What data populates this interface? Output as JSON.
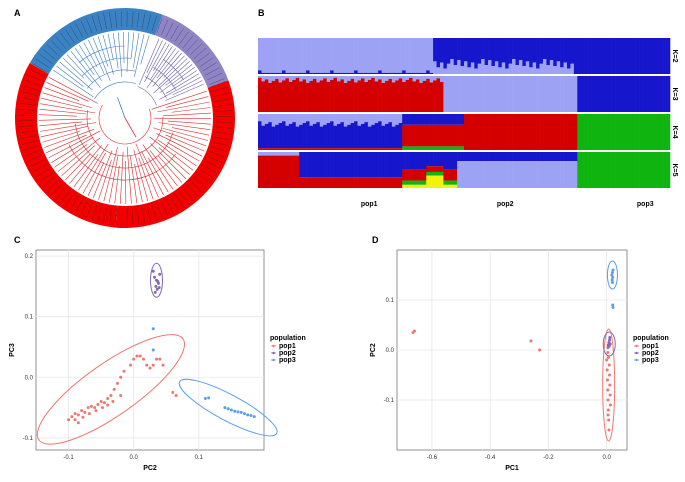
{
  "panels": {
    "a": "A",
    "b": "B",
    "c": "C",
    "d": "D"
  },
  "colors": {
    "red": "#f20000",
    "steelblue": "#3b82c4",
    "purple": "#8f84c5",
    "navy": "#1616cc",
    "lavender": "#9ea2f5",
    "crimson": "#d40000",
    "green": "#0fb40f",
    "yellow": "#f2f20a",
    "pca_pop1": "#f2766d",
    "pca_pop2": "#8468b3",
    "pca_pop3": "#5b9ee8"
  },
  "chart_data": [
    {
      "type": "dendrogram",
      "panel": "A",
      "clades": [
        {
          "name": "red",
          "fraction": 0.56
        },
        {
          "name": "blue",
          "fraction": 0.22
        },
        {
          "name": "purple",
          "fraction": 0.22
        }
      ]
    },
    {
      "type": "stacked_bar",
      "panel": "B",
      "rows": [
        {
          "label": "K=2",
          "components": [
            "lavender",
            "navy"
          ]
        },
        {
          "label": "K=3",
          "components": [
            "crimson",
            "lavender",
            "navy"
          ]
        },
        {
          "label": "K=4",
          "components": [
            "navy",
            "crimson",
            "lavender",
            "green"
          ]
        },
        {
          "label": "K=5",
          "components": [
            "crimson",
            "navy",
            "yellow",
            "lavender",
            "green"
          ]
        }
      ],
      "groups": [
        {
          "label": "pop1",
          "start": 0.0,
          "end": 0.5
        },
        {
          "label": "pop2",
          "start": 0.5,
          "end": 0.78
        },
        {
          "label": "pop3",
          "start": 0.78,
          "end": 1.0
        }
      ]
    },
    {
      "type": "scatter",
      "panel": "C",
      "xlabel": "PC2",
      "ylabel": "PC3",
      "xlim": [
        -0.15,
        0.2
      ],
      "ylim": [
        -0.12,
        0.21
      ],
      "xticks": [
        "-0.1",
        "0.0",
        "0.1"
      ],
      "yticks": [
        "0.2",
        "0.1",
        "0.0",
        "-0.1"
      ],
      "legend_title": "population",
      "legend": [
        "pop1",
        "pop2",
        "pop3"
      ],
      "series": [
        {
          "name": "pop1",
          "points": [
            [
              -0.1,
              -0.07
            ],
            [
              -0.095,
              -0.065
            ],
            [
              -0.09,
              -0.06
            ],
            [
              -0.085,
              -0.062
            ],
            [
              -0.08,
              -0.055
            ],
            [
              -0.075,
              -0.058
            ],
            [
              -0.07,
              -0.05
            ],
            [
              -0.065,
              -0.048
            ],
            [
              -0.06,
              -0.05
            ],
            [
              -0.055,
              -0.045
            ],
            [
              -0.05,
              -0.04
            ],
            [
              -0.045,
              -0.042
            ],
            [
              -0.04,
              -0.035
            ],
            [
              -0.035,
              -0.03
            ],
            [
              -0.03,
              -0.02
            ],
            [
              -0.025,
              -0.01
            ],
            [
              -0.02,
              0.0
            ],
            [
              -0.015,
              0.01
            ],
            [
              -0.005,
              0.02
            ],
            [
              0.0,
              0.03
            ],
            [
              0.005,
              0.035
            ],
            [
              0.01,
              0.035
            ],
            [
              0.015,
              0.03
            ],
            [
              0.02,
              0.02
            ],
            [
              0.025,
              0.015
            ],
            [
              0.03,
              0.02
            ],
            [
              0.035,
              0.03
            ],
            [
              0.04,
              0.03
            ],
            [
              0.045,
              0.02
            ],
            [
              0.06,
              -0.025
            ],
            [
              0.065,
              -0.03
            ],
            [
              -0.09,
              -0.07
            ],
            [
              -0.085,
              -0.075
            ],
            [
              -0.078,
              -0.066
            ],
            [
              -0.068,
              -0.06
            ],
            [
              -0.058,
              -0.055
            ],
            [
              -0.048,
              -0.05
            ],
            [
              -0.04,
              -0.046
            ],
            [
              -0.032,
              -0.04
            ],
            [
              -0.02,
              -0.03
            ]
          ]
        },
        {
          "name": "pop2",
          "points": [
            [
              0.03,
              0.175
            ],
            [
              0.032,
              0.165
            ],
            [
              0.035,
              0.16
            ],
            [
              0.034,
              0.15
            ],
            [
              0.036,
              0.145
            ],
            [
              0.038,
              0.155
            ],
            [
              0.04,
              0.17
            ],
            [
              0.033,
              0.14
            ],
            [
              0.037,
              0.158
            ],
            [
              0.039,
              0.148
            ]
          ]
        },
        {
          "name": "pop3",
          "points": [
            [
              0.03,
              0.08
            ],
            [
              0.03,
              0.045
            ],
            [
              0.11,
              -0.035
            ],
            [
              0.115,
              -0.034
            ],
            [
              0.14,
              -0.05
            ],
            [
              0.145,
              -0.052
            ],
            [
              0.15,
              -0.054
            ],
            [
              0.155,
              -0.056
            ],
            [
              0.16,
              -0.057
            ],
            [
              0.165,
              -0.058
            ],
            [
              0.17,
              -0.06
            ],
            [
              0.175,
              -0.062
            ],
            [
              0.18,
              -0.063
            ],
            [
              0.185,
              -0.065
            ]
          ]
        }
      ]
    },
    {
      "type": "scatter",
      "panel": "D",
      "xlabel": "PC1",
      "ylabel": "PC2",
      "xlim": [
        -0.72,
        0.07
      ],
      "ylim": [
        -0.2,
        0.2
      ],
      "xticks": [
        "-0.6",
        "-0.4",
        "-0.2",
        "0.0"
      ],
      "yticks": [
        "0.1",
        "0.0",
        "-0.1"
      ],
      "legend_title": "population",
      "legend": [
        "pop1",
        "pop2",
        "pop3"
      ],
      "series": [
        {
          "name": "pop1",
          "points": [
            [
              -0.665,
              0.035
            ],
            [
              -0.66,
              0.038
            ],
            [
              -0.26,
              0.018
            ],
            [
              -0.23,
              0.0
            ],
            [
              0.0,
              -0.02
            ],
            [
              0.002,
              -0.04
            ],
            [
              0.003,
              -0.06
            ],
            [
              0.004,
              -0.08
            ],
            [
              0.005,
              -0.1
            ],
            [
              0.006,
              -0.12
            ],
            [
              0.007,
              -0.14
            ],
            [
              0.008,
              -0.16
            ],
            [
              0.009,
              -0.03
            ],
            [
              0.01,
              -0.05
            ],
            [
              0.011,
              -0.07
            ],
            [
              0.012,
              -0.09
            ],
            [
              0.013,
              -0.11
            ],
            [
              0.005,
              -0.13
            ],
            [
              0.006,
              -0.015
            ],
            [
              0.004,
              -0.005
            ]
          ]
        },
        {
          "name": "pop2",
          "points": [
            [
              0.005,
              0.005
            ],
            [
              0.006,
              0.01
            ],
            [
              0.008,
              0.015
            ],
            [
              0.01,
              0.02
            ],
            [
              0.012,
              0.012
            ],
            [
              0.011,
              0.025
            ],
            [
              0.009,
              0.008
            ]
          ]
        },
        {
          "name": "pop3",
          "points": [
            [
              0.018,
              0.15
            ],
            [
              0.02,
              0.155
            ],
            [
              0.019,
              0.14
            ],
            [
              0.021,
              0.145
            ],
            [
              0.022,
              0.16
            ],
            [
              0.02,
              0.135
            ],
            [
              0.021,
              0.09
            ],
            [
              0.022,
              0.085
            ]
          ]
        }
      ]
    }
  ]
}
